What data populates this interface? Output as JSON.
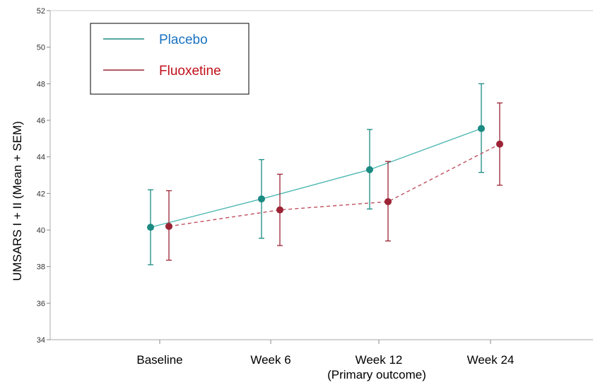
{
  "chart_data": {
    "type": "line",
    "title": "",
    "xlabel": "",
    "ylabel": "UMSARS I + II (Mean + SEM)",
    "ylim": [
      34,
      52
    ],
    "yticks": [
      34,
      36,
      38,
      40,
      42,
      44,
      46,
      48,
      50,
      52
    ],
    "categories": [
      "Baseline",
      "Week 6",
      "Week 12",
      "Week 24"
    ],
    "category_sublabels": [
      "",
      "",
      "(Primary outcome)",
      ""
    ],
    "grid": false,
    "legend_position": "top-left",
    "series": [
      {
        "name": "Placebo",
        "color": "#1a8a82",
        "line_color": "#4fb8b2",
        "legend_text_color": "#1a73c0",
        "line_style": "solid",
        "values": [
          40.15,
          41.7,
          43.3,
          45.55
        ],
        "err_low": [
          38.1,
          39.55,
          41.15,
          43.15
        ],
        "err_high": [
          42.2,
          43.85,
          45.5,
          48.0
        ]
      },
      {
        "name": "Fluoxetine",
        "color": "#9b2335",
        "line_color": "#c0505f",
        "legend_text_color": "#c0101a",
        "line_style": "dashed",
        "values": [
          40.2,
          41.1,
          41.55,
          44.7
        ],
        "err_low": [
          38.35,
          39.15,
          39.4,
          42.45
        ],
        "err_high": [
          42.15,
          43.05,
          43.75,
          46.95
        ]
      }
    ]
  }
}
